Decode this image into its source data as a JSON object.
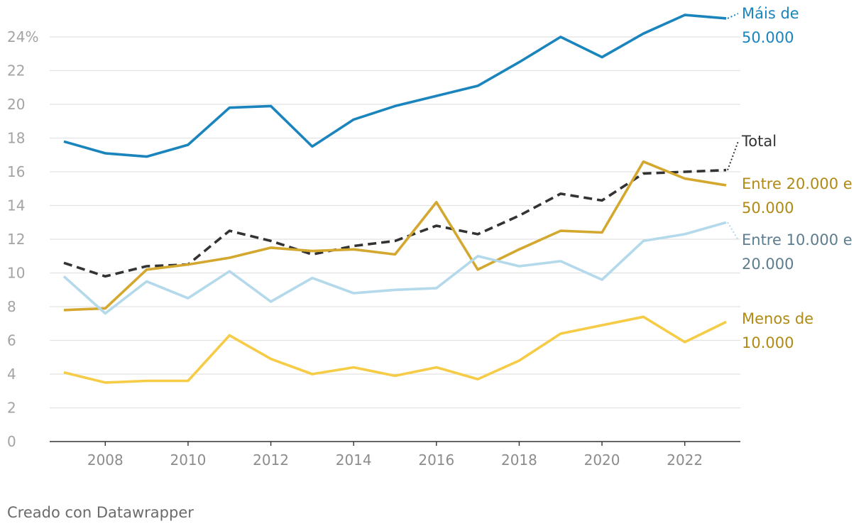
{
  "chart_data": {
    "type": "line",
    "title": "",
    "xlabel": "",
    "ylabel": "",
    "x": [
      2007,
      2008,
      2009,
      2010,
      2011,
      2012,
      2013,
      2014,
      2015,
      2016,
      2017,
      2018,
      2019,
      2020,
      2021,
      2022,
      2023
    ],
    "x_ticks": [
      2008,
      2010,
      2012,
      2014,
      2016,
      2018,
      2020,
      2022
    ],
    "x_tick_labels": [
      "2008",
      "2010",
      "2012",
      "2014",
      "2016",
      "2018",
      "2020",
      "2022"
    ],
    "xlim": [
      2007,
      2023
    ],
    "ylim": [
      0,
      24
    ],
    "y_ticks": [
      0,
      2,
      4,
      6,
      8,
      10,
      12,
      14,
      16,
      18,
      20,
      22,
      24
    ],
    "y_tick_labels": [
      "0",
      "2",
      "4",
      "6",
      "8",
      "10",
      "12",
      "14",
      "16",
      "18",
      "20",
      "22",
      "24%"
    ],
    "grid": true,
    "series": [
      {
        "name": "Máis de 50.000",
        "label_lines": [
          "Máis de",
          "50.000"
        ],
        "color": "#1a84bd",
        "label_color": "#1a84bd",
        "dashed": false,
        "values": [
          17.8,
          17.1,
          16.9,
          17.6,
          19.8,
          19.9,
          17.5,
          19.1,
          19.9,
          20.5,
          21.1,
          22.5,
          24.0,
          22.8,
          24.2,
          25.3,
          25.1
        ]
      },
      {
        "name": "Total",
        "label_lines": [
          "Total"
        ],
        "color": "#333333",
        "label_color": "#333333",
        "dashed": true,
        "values": [
          10.6,
          9.8,
          10.4,
          10.5,
          12.5,
          11.9,
          11.1,
          11.6,
          11.9,
          12.8,
          12.3,
          13.4,
          14.7,
          14.3,
          15.9,
          16.0,
          16.1
        ]
      },
      {
        "name": "Entre 20.000 e 50.000",
        "label_lines": [
          "Entre 20.000 e",
          "50.000"
        ],
        "color": "#d4a72e",
        "label_color": "#b08a15",
        "dashed": false,
        "values": [
          7.8,
          7.9,
          10.2,
          10.5,
          10.9,
          11.5,
          11.3,
          11.4,
          11.1,
          14.2,
          10.2,
          11.4,
          12.5,
          12.4,
          16.6,
          15.6,
          15.2
        ]
      },
      {
        "name": "Entre 10.000 e 20.000",
        "label_lines": [
          "Entre 10.000 e",
          "20.000"
        ],
        "color": "#b3d9ea",
        "label_color": "#5d7d8f",
        "dashed": false,
        "values": [
          9.8,
          7.6,
          9.5,
          8.5,
          10.1,
          8.3,
          9.7,
          8.8,
          9.0,
          9.1,
          11.0,
          10.4,
          10.7,
          9.6,
          11.9,
          12.3,
          13.0
        ]
      },
      {
        "name": "Menos de 10.000",
        "label_lines": [
          "Menos de",
          "10.000"
        ],
        "color": "#f6cb45",
        "label_color": "#b08a15",
        "dashed": false,
        "values": [
          4.1,
          3.5,
          3.6,
          3.6,
          6.3,
          4.9,
          4.0,
          4.4,
          3.9,
          4.4,
          3.7,
          4.8,
          6.4,
          6.9,
          7.4,
          5.9,
          7.1
        ]
      }
    ],
    "legend": "direct-labels-right"
  },
  "footer": {
    "credit": "Creado con Datawrapper"
  }
}
